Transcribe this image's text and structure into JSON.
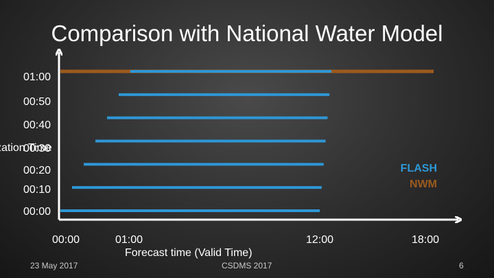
{
  "slide": {
    "title": "Comparison with National Water Model",
    "date": "23 May 2017",
    "event": "CSDMS 2017",
    "page_number": "6"
  },
  "chart_data": {
    "type": "line",
    "ylabel": "zation Time",
    "xlabel": "Forecast time (Valid Time)",
    "y_ticks": [
      "01:00",
      "00:50",
      "00:40",
      "00:30",
      "00:20",
      "00:10",
      "00:00"
    ],
    "x_ticks": [
      "00:00",
      "01:00",
      "12:00",
      "18:00"
    ],
    "legend": [
      {
        "name": "FLASH",
        "color": "#2e97d6"
      },
      {
        "name": "NWM",
        "color": "#9c5a1e"
      }
    ],
    "series": [
      {
        "name": "NWM",
        "color": "#9c5a1e",
        "initialization_min": 60,
        "start_min": 0,
        "end_min": 1080
      },
      {
        "name": "FLASH",
        "color": "#2e97d6",
        "initialization_min": 60,
        "start_min": 60,
        "end_min": 660
      },
      {
        "name": "FLASH",
        "color": "#2e97d6",
        "initialization_min": 50,
        "start_min": 50,
        "end_min": 650
      },
      {
        "name": "FLASH",
        "color": "#2e97d6",
        "initialization_min": 40,
        "start_min": 40,
        "end_min": 640
      },
      {
        "name": "FLASH",
        "color": "#2e97d6",
        "initialization_min": 30,
        "start_min": 30,
        "end_min": 630
      },
      {
        "name": "FLASH",
        "color": "#2e97d6",
        "initialization_min": 20,
        "start_min": 20,
        "end_min": 620
      },
      {
        "name": "FLASH",
        "color": "#2e97d6",
        "initialization_min": 10,
        "start_min": 10,
        "end_min": 610
      },
      {
        "name": "FLASH",
        "color": "#2e97d6",
        "initialization_min": 0,
        "start_min": 0,
        "end_min": 600
      }
    ]
  }
}
